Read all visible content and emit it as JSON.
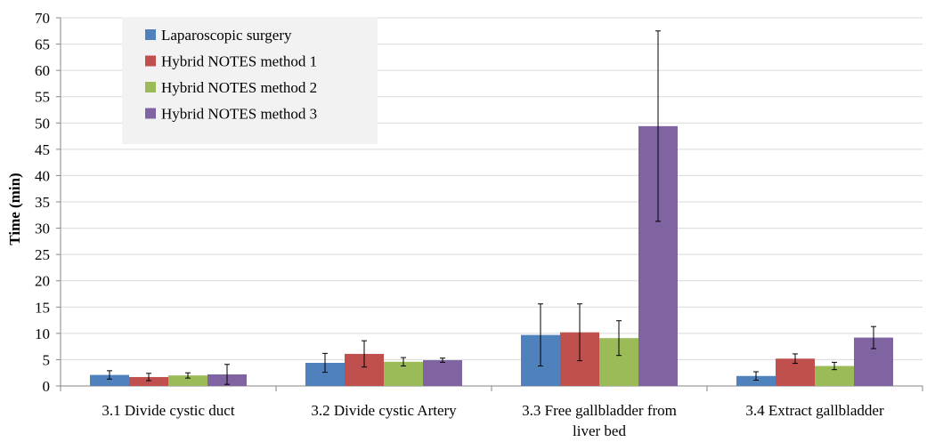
{
  "chart_data": {
    "type": "bar",
    "title": "",
    "xlabel": "",
    "ylabel": "Time (min)",
    "ylim": [
      0,
      70
    ],
    "yticks": [
      0,
      5,
      10,
      15,
      20,
      25,
      30,
      35,
      40,
      45,
      50,
      55,
      60,
      65,
      70
    ],
    "grid": true,
    "legend_position": "top-left",
    "categories": [
      [
        "3.1 Divide cystic duct"
      ],
      [
        "3.2 Divide cystic Artery"
      ],
      [
        "3.3 Free gallbladder from",
        "liver bed"
      ],
      [
        "3.4 Extract gallbladder"
      ]
    ],
    "series": [
      {
        "name": "Laparoscopic surgery",
        "color": "#4f81bd",
        "values": [
          2.1,
          4.4,
          9.7,
          1.9
        ],
        "errors": [
          0.8,
          1.8,
          5.9,
          0.8
        ]
      },
      {
        "name": "Hybrid NOTES method 1",
        "color": "#c0504d",
        "values": [
          1.7,
          6.1,
          10.2,
          5.2
        ],
        "errors": [
          0.7,
          2.5,
          5.4,
          0.9
        ]
      },
      {
        "name": "Hybrid NOTES method 2",
        "color": "#9bbb59",
        "values": [
          2.0,
          4.6,
          9.1,
          3.8
        ],
        "errors": [
          0.5,
          0.8,
          3.3,
          0.7
        ]
      },
      {
        "name": "Hybrid NOTES method 3",
        "color": "#8064a2",
        "values": [
          2.2,
          4.9,
          49.4,
          9.2
        ],
        "errors": [
          1.9,
          0.4,
          18.1,
          2.1
        ]
      }
    ]
  }
}
